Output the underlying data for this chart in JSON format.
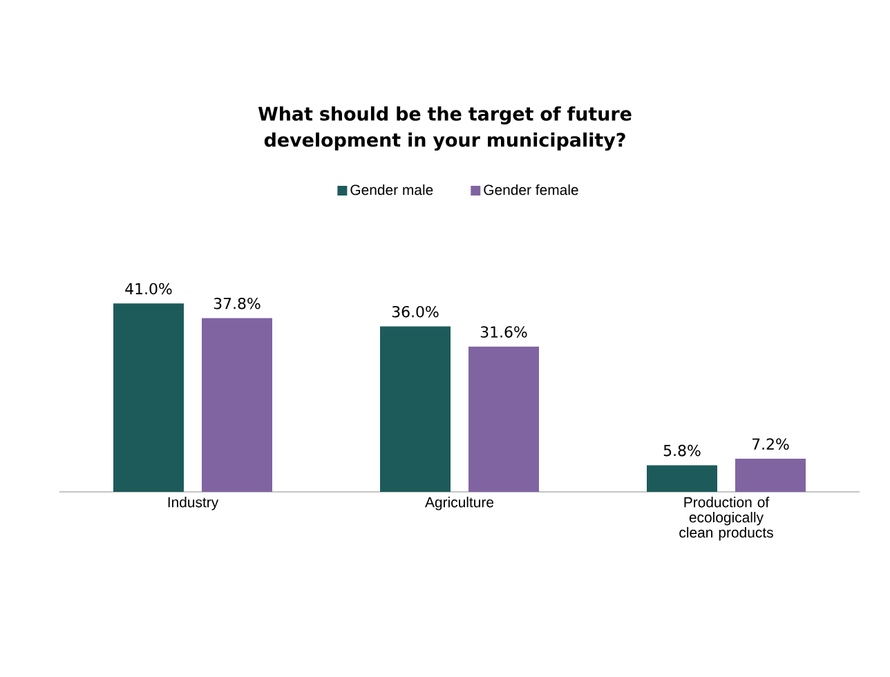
{
  "chart_data": {
    "type": "bar",
    "title": "What should be the target of future development in your municipality?",
    "categories": [
      "Industry",
      "Agriculture",
      "Production of ecologically clean products"
    ],
    "series": [
      {
        "name": "Gender male",
        "color": "#1d5b5b",
        "values": [
          41.0,
          36.0,
          5.8
        ],
        "value_labels": [
          "41.0%",
          "36.0%",
          "5.8%"
        ]
      },
      {
        "name": "Gender female",
        "color": "#8064a2",
        "values": [
          37.8,
          31.6,
          7.2
        ],
        "value_labels": [
          "37.8%",
          "31.6%",
          "7.2%"
        ]
      }
    ],
    "legend": "top",
    "grid": false
  }
}
